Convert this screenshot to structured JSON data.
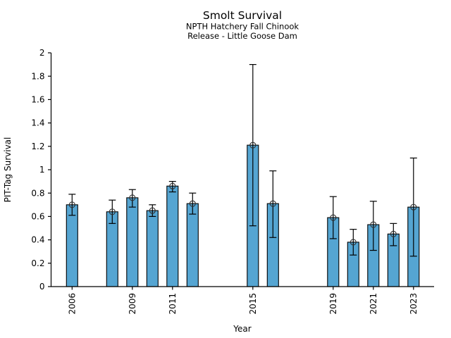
{
  "figure": {
    "background": "#ffffff"
  },
  "chart_data": {
    "type": "bar",
    "title": "Smolt Survival",
    "subtitle": [
      "NPTH Hatchery Fall Chinook",
      "Release - Little Goose Dam"
    ],
    "xlabel": "Year",
    "ylabel": "PIT-Tag Survival",
    "ylim": [
      0,
      2
    ],
    "ytick_step": 0.2,
    "yticks": [
      0,
      0.2,
      0.4,
      0.6,
      0.8,
      1,
      1.2,
      1.4,
      1.6,
      1.8,
      2
    ],
    "xticks": [
      2006,
      2009,
      2011,
      2015,
      2019,
      2021,
      2023
    ],
    "grid": false,
    "legend": "none",
    "bar_color": "#55a5d2",
    "bar_edge_color": "#000000",
    "errorbar_color": "#000000",
    "marker": "open-circle",
    "marker_edge_color": "#2f2f2f",
    "series": [
      {
        "name": "PIT-Tag Survival",
        "points": [
          {
            "year": 2006,
            "value": 0.7,
            "err_lo": 0.61,
            "err_hi": 0.79
          },
          {
            "year": 2008,
            "value": 0.64,
            "err_lo": 0.54,
            "err_hi": 0.74
          },
          {
            "year": 2009,
            "value": 0.76,
            "err_lo": 0.68,
            "err_hi": 0.83
          },
          {
            "year": 2010,
            "value": 0.65,
            "err_lo": 0.6,
            "err_hi": 0.7
          },
          {
            "year": 2011,
            "value": 0.86,
            "err_lo": 0.81,
            "err_hi": 0.9
          },
          {
            "year": 2012,
            "value": 0.71,
            "err_lo": 0.62,
            "err_hi": 0.8
          },
          {
            "year": 2015,
            "value": 1.21,
            "err_lo": 0.52,
            "err_hi": 1.9
          },
          {
            "year": 2016,
            "value": 0.71,
            "err_lo": 0.42,
            "err_hi": 0.99
          },
          {
            "year": 2019,
            "value": 0.59,
            "err_lo": 0.41,
            "err_hi": 0.77
          },
          {
            "year": 2020,
            "value": 0.38,
            "err_lo": 0.27,
            "err_hi": 0.49
          },
          {
            "year": 2021,
            "value": 0.53,
            "err_lo": 0.31,
            "err_hi": 0.73
          },
          {
            "year": 2022,
            "value": 0.45,
            "err_lo": 0.35,
            "err_hi": 0.54
          },
          {
            "year": 2023,
            "value": 0.68,
            "err_lo": 0.26,
            "err_hi": 1.1
          }
        ]
      }
    ]
  }
}
